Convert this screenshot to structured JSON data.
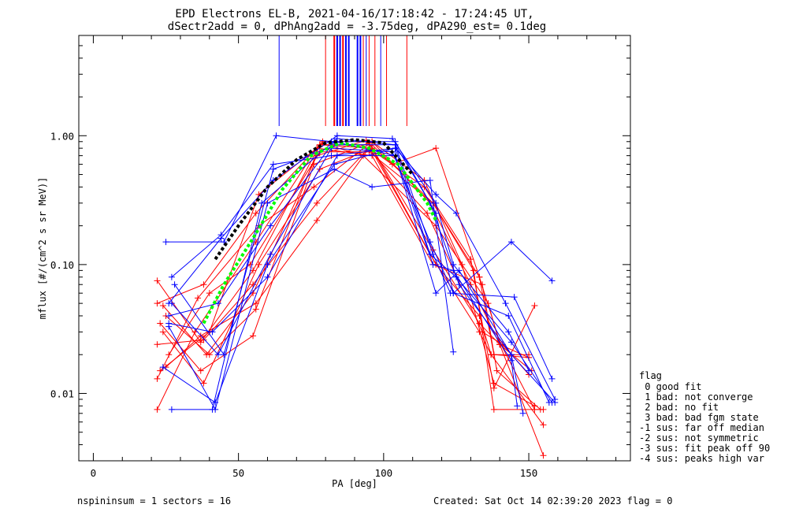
{
  "chart_data": {
    "type": "line",
    "title": "EPD Electrons EL-B, 2021-04-16/17:18:42 - 17:24:45 UT,",
    "subtitle": "dSectr2add = 0, dPhAng2add = -3.75deg, dPA290_est=   0.1deg",
    "xlabel": "PA [deg]",
    "ylabel": "mflux [#/(cm^2 s sr MeV)]",
    "xlim": [
      -5,
      185
    ],
    "ylim": [
      0.003,
      6.0
    ],
    "yscale": "log",
    "x_ticks": [
      "0",
      "50",
      "100",
      "150"
    ],
    "y_ticks": [
      "0.01",
      "0.10",
      "1.00"
    ],
    "series_colors": {
      "red": "#ff0000",
      "blue": "#0000ff",
      "green": "#00ff00",
      "black": "#000000"
    },
    "red_series": [
      [
        [
          22,
          0.075
        ],
        [
          37,
          0.025
        ],
        [
          55,
          0.09
        ],
        [
          78,
          0.85
        ],
        [
          95,
          0.85
        ],
        [
          103,
          0.6
        ],
        [
          118,
          0.8
        ],
        [
          133,
          0.08
        ],
        [
          138,
          0.02
        ],
        [
          150,
          0.019
        ]
      ],
      [
        [
          22,
          0.05
        ],
        [
          38,
          0.07
        ],
        [
          56,
          0.25
        ],
        [
          79,
          0.9
        ],
        [
          96,
          0.9
        ],
        [
          114,
          0.45
        ],
        [
          127,
          0.1
        ],
        [
          138,
          0.012
        ],
        [
          152,
          0.008
        ]
      ],
      [
        [
          23,
          0.015
        ],
        [
          40,
          0.03
        ],
        [
          57,
          0.35
        ],
        [
          79,
          0.87
        ],
        [
          93,
          0.7
        ],
        [
          118,
          0.2
        ],
        [
          136,
          0.05
        ],
        [
          140,
          0.024
        ],
        [
          150,
          0.019
        ]
      ],
      [
        [
          22,
          0.0075
        ],
        [
          35,
          0.03
        ],
        [
          56,
          0.15
        ],
        [
          77,
          0.8
        ],
        [
          96,
          0.7
        ],
        [
          117,
          0.1
        ],
        [
          134,
          0.07
        ],
        [
          139,
          0.015
        ],
        [
          154,
          0.0075
        ]
      ],
      [
        [
          24,
          0.048
        ],
        [
          39,
          0.02
        ],
        [
          55,
          0.06
        ],
        [
          77,
          0.7
        ],
        [
          94,
          0.92
        ],
        [
          116,
          0.12
        ],
        [
          133,
          0.03
        ],
        [
          137,
          0.02
        ],
        [
          155,
          0.0057
        ]
      ],
      [
        [
          22,
          0.013
        ],
        [
          36,
          0.055
        ],
        [
          57,
          0.2
        ],
        [
          76,
          0.4
        ],
        [
          96,
          0.9
        ],
        [
          116,
          0.3
        ],
        [
          130,
          0.07
        ],
        [
          140,
          0.024
        ],
        [
          155,
          0.0033
        ]
      ],
      [
        [
          26,
          0.02
        ],
        [
          40,
          0.06
        ],
        [
          54,
          0.1
        ],
        [
          78,
          0.75
        ],
        [
          95,
          0.75
        ],
        [
          117,
          0.3
        ],
        [
          131,
          0.09
        ],
        [
          138,
          0.0075
        ],
        [
          155,
          0.0075
        ]
      ],
      [
        [
          22,
          0.024
        ],
        [
          38,
          0.026
        ],
        [
          55,
          0.07
        ],
        [
          77,
          0.3
        ],
        [
          96,
          0.85
        ],
        [
          117,
          0.3
        ],
        [
          133,
          0.08
        ],
        [
          140,
          0.025
        ],
        [
          152,
          0.0075
        ]
      ],
      [
        [
          25,
          0.016
        ],
        [
          37,
          0.028
        ],
        [
          56,
          0.05
        ],
        [
          77,
          0.22
        ],
        [
          95,
          0.8
        ],
        [
          114,
          0.4
        ],
        [
          130,
          0.11
        ],
        [
          138,
          0.011
        ],
        [
          152,
          0.048
        ]
      ],
      [
        [
          23,
          0.035
        ],
        [
          37,
          0.015
        ],
        [
          55,
          0.028
        ],
        [
          76,
          0.6
        ],
        [
          95,
          0.88
        ],
        [
          117,
          0.13
        ],
        [
          133,
          0.035
        ],
        [
          140,
          0.024
        ],
        [
          151,
          0.015
        ]
      ],
      [
        [
          25,
          0.04
        ],
        [
          40,
          0.02
        ],
        [
          56,
          0.045
        ],
        [
          78,
          0.85
        ],
        [
          96,
          0.8
        ],
        [
          118,
          0.1
        ],
        [
          133,
          0.04
        ],
        [
          137,
          0.02
        ],
        [
          150,
          0.02
        ]
      ],
      [
        [
          24,
          0.03
        ],
        [
          38,
          0.012
        ],
        [
          57,
          0.1
        ],
        [
          78,
          0.55
        ],
        [
          95,
          0.78
        ],
        [
          115,
          0.25
        ],
        [
          134,
          0.03
        ],
        [
          141,
          0.024
        ],
        [
          150,
          0.014
        ]
      ]
    ],
    "blue_series": [
      [
        [
          25,
          0.15
        ],
        [
          45,
          0.15
        ],
        [
          63,
          1.0
        ],
        [
          82,
          0.9
        ],
        [
          104,
          0.9
        ],
        [
          118,
          0.25
        ],
        [
          124,
          0.06
        ],
        [
          144,
          0.15
        ],
        [
          158,
          0.075
        ]
      ],
      [
        [
          26,
          0.033
        ],
        [
          42,
          0.0075
        ],
        [
          60,
          0.3
        ],
        [
          83,
          0.55
        ],
        [
          96,
          0.4
        ],
        [
          116,
          0.45
        ],
        [
          124,
          0.021
        ]
      ],
      [
        [
          27,
          0.08
        ],
        [
          44,
          0.17
        ],
        [
          62,
          0.6
        ],
        [
          82,
          0.7
        ],
        [
          104,
          0.8
        ],
        [
          118,
          0.35
        ],
        [
          125,
          0.25
        ],
        [
          142,
          0.05
        ],
        [
          159,
          0.009
        ]
      ],
      [
        [
          27,
          0.0075
        ],
        [
          41,
          0.0075
        ],
        [
          58,
          0.3
        ],
        [
          84,
          0.95
        ],
        [
          104,
          0.85
        ],
        [
          116,
          0.3
        ],
        [
          126,
          0.07
        ],
        [
          144,
          0.02
        ],
        [
          159,
          0.0085
        ]
      ],
      [
        [
          28,
          0.07
        ],
        [
          45,
          0.02
        ],
        [
          62,
          0.55
        ],
        [
          84,
          0.85
        ],
        [
          104,
          0.85
        ],
        [
          117,
          0.12
        ],
        [
          123,
          0.06
        ],
        [
          145,
          0.056
        ],
        [
          158,
          0.013
        ]
      ],
      [
        [
          24,
          0.016
        ],
        [
          42,
          0.0085
        ],
        [
          60,
          0.1
        ],
        [
          83,
          0.6
        ],
        [
          104,
          0.8
        ],
        [
          116,
          0.12
        ],
        [
          125,
          0.08
        ],
        [
          144,
          0.025
        ],
        [
          158,
          0.0085
        ]
      ],
      [
        [
          26,
          0.04
        ],
        [
          43,
          0.05
        ],
        [
          61,
          0.2
        ],
        [
          83,
          0.9
        ],
        [
          104,
          0.7
        ],
        [
          118,
          0.06
        ],
        [
          126,
          0.09
        ],
        [
          144,
          0.02
        ],
        [
          148,
          0.007
        ]
      ],
      [
        [
          26,
          0.035
        ],
        [
          41,
          0.03
        ],
        [
          60,
          0.08
        ],
        [
          84,
          0.7
        ],
        [
          104,
          0.7
        ],
        [
          117,
          0.1
        ],
        [
          124,
          0.09
        ],
        [
          144,
          0.018
        ],
        [
          146,
          0.008
        ]
      ],
      [
        [
          27,
          0.05
        ],
        [
          43,
          0.02
        ],
        [
          61,
          0.12
        ],
        [
          82,
          0.8
        ],
        [
          103,
          0.75
        ],
        [
          116,
          0.15
        ],
        [
          124,
          0.06
        ],
        [
          143,
          0.04
        ],
        [
          157,
          0.0085
        ]
      ],
      [
        [
          26,
          0.05
        ],
        [
          44,
          0.16
        ],
        [
          62,
          0.45
        ],
        [
          84,
          1.0
        ],
        [
          103,
          0.95
        ],
        [
          118,
          0.3
        ],
        [
          124,
          0.1
        ],
        [
          143,
          0.03
        ],
        [
          150,
          0.015
        ]
      ]
    ],
    "red_markers_above_plot": [
      80,
      83,
      84,
      86,
      87,
      93,
      95,
      97,
      101,
      108
    ],
    "blue_markers_above_plot": [
      64,
      84,
      85,
      87,
      88,
      91,
      92,
      94,
      99
    ],
    "green_fit": {
      "x": [
        38,
        45,
        55,
        65,
        75,
        85,
        95,
        105,
        115,
        118
      ],
      "y": [
        0.035,
        0.07,
        0.16,
        0.38,
        0.7,
        0.88,
        0.8,
        0.6,
        0.3,
        0.22
      ]
    },
    "black_fit": {
      "x": [
        42,
        50,
        60,
        70,
        80,
        90,
        100,
        110
      ],
      "y": [
        0.11,
        0.2,
        0.4,
        0.65,
        0.88,
        0.93,
        0.88,
        0.5
      ]
    },
    "legend": {
      "title": "flag",
      "entries": [
        " 0 good fit",
        " 1 bad: not converge",
        " 2 bad: no fit",
        " 3 bad: bad fgm state",
        "-1 sus: far off median",
        "-2 sus: not symmetric",
        "-3 sus: fit peak off 90",
        "-4 sus: peaks high var"
      ]
    }
  },
  "footer": {
    "left": "nspininsum =  1  sectors = 16",
    "right": "Created: Sat Oct 14 02:39:20 2023   flag = 0"
  }
}
